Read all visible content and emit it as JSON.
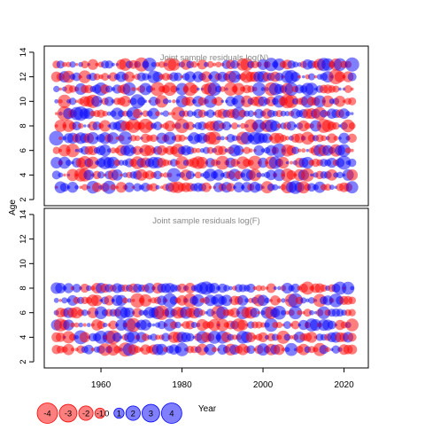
{
  "chart_data": {
    "type": "scatter",
    "xlabel": "Year",
    "ylabel": "Age",
    "xlim": [
      1946,
      2026
    ],
    "ylim": [
      1.5,
      14.5
    ],
    "x_ticks": [
      "1960",
      "1980",
      "2000",
      "2020"
    ],
    "y_ticks": [
      "2",
      "4",
      "6",
      "8",
      "10",
      "12",
      "14"
    ],
    "panels": [
      {
        "title": "Joint sample residuals log(N)",
        "ages": [
          3,
          4,
          5,
          6,
          7,
          8,
          9,
          10,
          11,
          12,
          13
        ],
        "years": [
          1949,
          2022
        ]
      },
      {
        "title": "Joint sample residuals log(F)",
        "ages": [
          3,
          4,
          5,
          6,
          7,
          8
        ],
        "years": [
          1949,
          2022
        ]
      }
    ],
    "legend": {
      "values": [
        "-4",
        "-3",
        "-2",
        "-1",
        "0",
        "1",
        "2",
        "3",
        "4"
      ],
      "colors": {
        "negative": "#ff0000",
        "positive": "#0000ff"
      }
    }
  }
}
